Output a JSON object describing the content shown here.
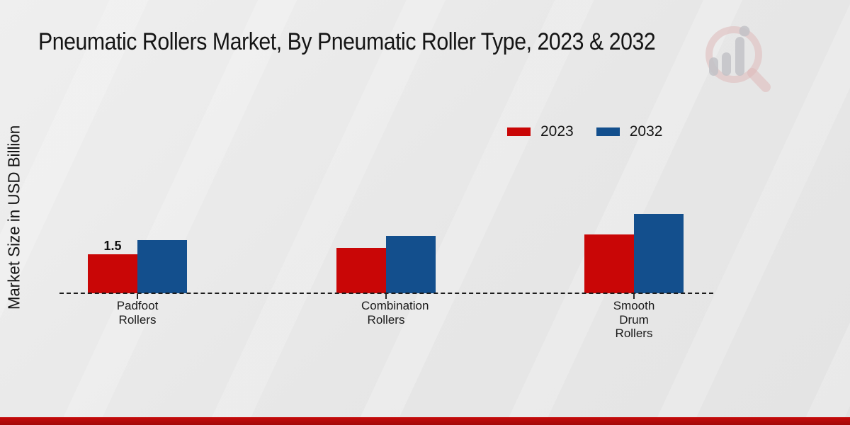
{
  "title": "Pneumatic Rollers Market, By Pneumatic Roller Type, 2023 & 2032",
  "y_axis_label": "Market Size in USD Billion",
  "legend": [
    {
      "label": "2023",
      "color": "#c90606"
    },
    {
      "label": "2032",
      "color": "#134f8d"
    }
  ],
  "chart_data": {
    "type": "bar",
    "title": "Pneumatic Rollers Market, By Pneumatic Roller Type, 2023 & 2032",
    "xlabel": "",
    "ylabel": "Market Size in USD Billion",
    "categories": [
      "Padfoot Rollers",
      "Combination Rollers",
      "Smooth Drum Rollers"
    ],
    "series": [
      {
        "name": "2023",
        "color": "#c90606",
        "values": [
          1.5,
          1.75,
          2.25
        ]
      },
      {
        "name": "2032",
        "color": "#134f8d",
        "values": [
          2.05,
          2.2,
          3.05
        ]
      }
    ],
    "value_labels": [
      {
        "series_index": 0,
        "category_index": 0,
        "text": "1.5"
      }
    ],
    "ylim": [
      0,
      5
    ],
    "grid": false,
    "axis_style": "dashed-baseline-only",
    "legend_position": "upper-right"
  },
  "watermark": {
    "name": "magnifier-bar-chart-logo"
  },
  "footer": {
    "accent_color": "#b90b0b"
  }
}
